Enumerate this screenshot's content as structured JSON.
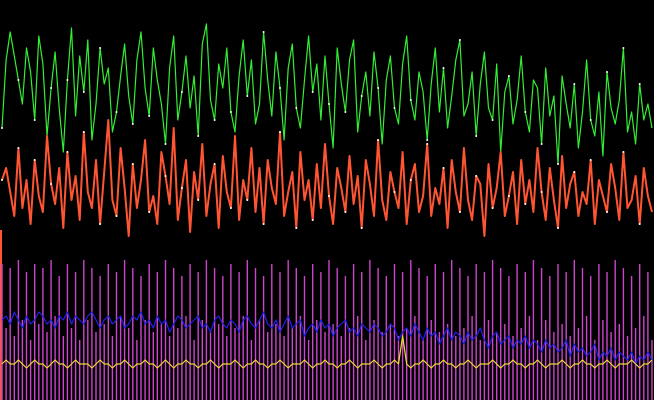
{
  "chart_data": {
    "type": "line",
    "background": "#000000",
    "grid": false,
    "legend": "none",
    "title": "",
    "xlabel": "",
    "ylabel": "",
    "x_count": 160,
    "ylim": [
      0,
      100
    ],
    "series": [
      {
        "color": "#33ee33",
        "values": [
          68,
          85,
          92,
          86,
          80,
          74,
          88,
          82,
          70,
          91,
          84,
          66,
          78,
          87,
          73,
          62,
          80,
          93,
          71,
          86,
          77,
          90,
          65,
          74,
          88,
          79,
          83,
          67,
          72,
          81,
          89,
          76,
          69,
          85,
          92,
          78,
          71,
          88,
          80,
          74,
          64,
          83,
          91,
          70,
          77,
          86,
          73,
          81,
          66,
          89,
          94,
          75,
          70,
          84,
          78,
          88,
          72,
          67,
          81,
          90,
          76,
          85,
          69,
          74,
          92,
          80,
          71,
          87,
          78,
          65,
          83,
          89,
          73,
          68,
          80,
          91,
          77,
          84,
          70,
          86,
          74,
          63,
          88,
          79,
          72,
          85,
          90,
          67,
          76,
          82,
          71,
          87,
          78,
          64,
          80,
          86,
          73,
          69,
          84,
          91,
          75,
          70,
          82,
          77,
          65,
          79,
          88,
          72,
          83,
          68,
          76,
          85,
          90,
          71,
          74,
          82,
          66,
          79,
          87,
          73,
          70,
          84,
          62,
          77,
          81,
          69,
          75,
          86,
          72,
          67,
          80,
          78,
          64,
          83,
          71,
          76,
          59,
          81,
          74,
          68,
          79,
          63,
          72,
          85,
          70,
          66,
          77,
          61,
          82,
          73,
          69,
          75,
          88,
          67,
          72,
          64,
          79,
          70,
          74,
          68
        ]
      },
      {
        "color": "#ff5533",
        "values": [
          55,
          58,
          52,
          46,
          63,
          48,
          55,
          44,
          60,
          51,
          47,
          66,
          54,
          49,
          58,
          43,
          62,
          50,
          56,
          45,
          67,
          52,
          48,
          60,
          44,
          57,
          70,
          50,
          46,
          63,
          53,
          41,
          59,
          48,
          55,
          65,
          47,
          51,
          44,
          62,
          56,
          49,
          68,
          45,
          53,
          60,
          42,
          57,
          50,
          64,
          46,
          54,
          59,
          43,
          61,
          52,
          48,
          66,
          45,
          55,
          50,
          63,
          47,
          58,
          44,
          60,
          53,
          49,
          67,
          46,
          52,
          57,
          43,
          62,
          50,
          55,
          45,
          59,
          48,
          64,
          51,
          44,
          58,
          53,
          47,
          61,
          49,
          56,
          43,
          60,
          54,
          46,
          65,
          50,
          45,
          57,
          52,
          48,
          62,
          44,
          55,
          59,
          47,
          51,
          64,
          46,
          53,
          49,
          58,
          43,
          60,
          52,
          47,
          63,
          50,
          45,
          56,
          54,
          41,
          59,
          48,
          53,
          62,
          46,
          51,
          57,
          44,
          60,
          49,
          55,
          47,
          63,
          52,
          45,
          58,
          50,
          43,
          61,
          48,
          54,
          57,
          46,
          52,
          49,
          60,
          44,
          55,
          51,
          47,
          59,
          53,
          45,
          62,
          48,
          50,
          56,
          44,
          58,
          51,
          47
        ]
      },
      {
        "color": "#cc44cc",
        "values": [
          34,
          18,
          33,
          16,
          35,
          20,
          32,
          15,
          34,
          19,
          33,
          17,
          35,
          21,
          31,
          16,
          34,
          18,
          32,
          15,
          35,
          20,
          33,
          17,
          31,
          19,
          34,
          16,
          32,
          21,
          35,
          18,
          33,
          15,
          31,
          20,
          34,
          17,
          32,
          19,
          35,
          16,
          33,
          18,
          31,
          21,
          34,
          15,
          32,
          20,
          35,
          17,
          33,
          19,
          31,
          16,
          34,
          18,
          32,
          21,
          35,
          15,
          33,
          20,
          31,
          17,
          34,
          19,
          32,
          16,
          35,
          18,
          33,
          21,
          31,
          15,
          34,
          20,
          32,
          17,
          35,
          19,
          33,
          16,
          31,
          18,
          34,
          21,
          32,
          15,
          35,
          20,
          33,
          17,
          31,
          19,
          34,
          16,
          32,
          18,
          35,
          21,
          33,
          15,
          31,
          20,
          34,
          17,
          32,
          19,
          35,
          16,
          33,
          18,
          31,
          21,
          34,
          15,
          32,
          20,
          35,
          17,
          33,
          19,
          31,
          16,
          34,
          18,
          32,
          21,
          35,
          15,
          33,
          20,
          31,
          17,
          34,
          19,
          32,
          16,
          35,
          18,
          33,
          21,
          31,
          15,
          34,
          20,
          32,
          17,
          35,
          19,
          33,
          16,
          31,
          18,
          34,
          21,
          32,
          15
        ]
      },
      {
        "color": "#2222ee",
        "values": [
          20,
          21,
          19,
          22,
          20,
          18,
          21,
          19,
          20,
          22,
          21,
          19,
          20,
          18,
          21,
          20,
          22,
          19,
          21,
          20,
          19,
          21,
          22,
          20,
          18,
          20,
          21,
          19,
          20,
          21,
          18,
          19,
          21,
          20,
          22,
          19,
          20,
          18,
          21,
          19,
          20,
          17,
          19,
          21,
          20,
          18,
          19,
          20,
          21,
          18,
          19,
          17,
          20,
          21,
          19,
          18,
          20,
          19,
          17,
          20,
          21,
          19,
          18,
          20,
          22,
          19,
          18,
          20,
          17,
          19,
          21,
          18,
          19,
          20,
          16,
          18,
          19,
          17,
          20,
          18,
          19,
          16,
          18,
          19,
          20,
          17,
          18,
          16,
          19,
          18,
          17,
          19,
          18,
          16,
          17,
          19,
          18,
          15,
          17,
          18,
          16,
          19,
          17,
          15,
          18,
          16,
          17,
          14,
          16,
          18,
          15,
          17,
          16,
          14,
          17,
          15,
          16,
          18,
          15,
          13,
          16,
          17,
          14,
          15,
          16,
          13,
          15,
          14,
          16,
          13,
          15,
          14,
          12,
          15,
          13,
          14,
          12,
          13,
          15,
          11,
          14,
          12,
          13,
          11,
          12,
          14,
          10,
          12,
          11,
          13,
          10,
          12,
          11,
          10,
          12,
          9,
          11,
          10,
          12,
          10
        ]
      },
      {
        "color": "#eedd33",
        "values": [
          9,
          10,
          9,
          9,
          10,
          9,
          8,
          9,
          10,
          9,
          9,
          8,
          9,
          10,
          9,
          9,
          8,
          9,
          10,
          9,
          9,
          9,
          8,
          9,
          10,
          9,
          9,
          8,
          9,
          9,
          10,
          9,
          8,
          9,
          9,
          10,
          9,
          9,
          8,
          9,
          10,
          9,
          8,
          9,
          9,
          10,
          9,
          9,
          8,
          9,
          9,
          10,
          9,
          8,
          9,
          9,
          9,
          10,
          9,
          8,
          9,
          9,
          10,
          9,
          9,
          8,
          9,
          9,
          10,
          9,
          8,
          9,
          9,
          9,
          10,
          9,
          8,
          9,
          9,
          10,
          9,
          9,
          8,
          9,
          9,
          10,
          9,
          8,
          9,
          9,
          9,
          10,
          9,
          8,
          9,
          9,
          10,
          9,
          16,
          9,
          8,
          9,
          9,
          10,
          9,
          8,
          9,
          9,
          10,
          9,
          9,
          8,
          9,
          9,
          10,
          9,
          8,
          9,
          9,
          9,
          10,
          9,
          8,
          9,
          9,
          10,
          9,
          9,
          8,
          9,
          9,
          10,
          9,
          8,
          9,
          9,
          9,
          10,
          9,
          8,
          9,
          9,
          10,
          9,
          9,
          8,
          9,
          9,
          10,
          9,
          8,
          9,
          9,
          9,
          10,
          9,
          8,
          9,
          9,
          10
        ]
      }
    ]
  }
}
